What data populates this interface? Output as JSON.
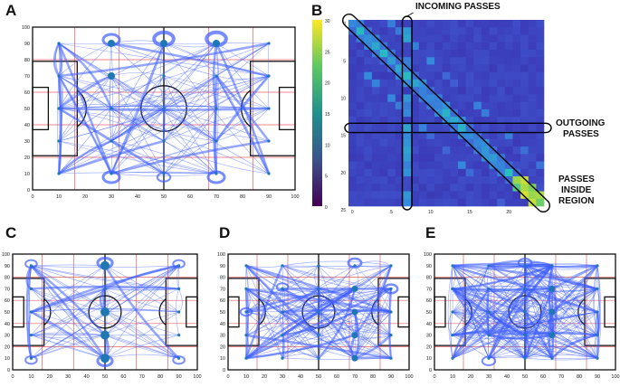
{
  "panels": {
    "A": {
      "label": "A",
      "x_ticks": [
        "0",
        "10",
        "20",
        "30",
        "40",
        "50",
        "60",
        "70",
        "80",
        "90",
        "100"
      ],
      "y_ticks": [
        "0",
        "10",
        "20",
        "30",
        "40",
        "50",
        "60",
        "70",
        "80",
        "90",
        "100"
      ]
    },
    "B": {
      "label": "B",
      "colorbar_ticks": [
        "30",
        "25",
        "20",
        "15",
        "10",
        "5",
        "0"
      ],
      "y_ticks": [
        "0",
        "5",
        "10",
        "15",
        "20",
        "25"
      ],
      "x_ticks": [
        "0",
        "5",
        "10",
        "15",
        "20"
      ],
      "annotations": {
        "incoming": "INCOMING PASSES",
        "outgoing_1": "OUTGOING",
        "outgoing_2": "PASSES",
        "inside_1": "PASSES",
        "inside_2": "INSIDE",
        "inside_3": "REGION"
      }
    },
    "C": {
      "label": "C",
      "x_ticks": [
        "0",
        "10",
        "20",
        "30",
        "40",
        "50",
        "60",
        "70",
        "80",
        "90",
        "100"
      ],
      "y_ticks": [
        "0",
        "10",
        "20",
        "30",
        "40",
        "50",
        "60",
        "70",
        "80",
        "90",
        "100"
      ]
    },
    "D": {
      "label": "D",
      "x_ticks": [
        "0",
        "10",
        "20",
        "30",
        "40",
        "50",
        "60",
        "70",
        "80",
        "90",
        "100"
      ],
      "y_ticks": [
        "0",
        "10",
        "20",
        "30",
        "40",
        "50",
        "60",
        "70",
        "80",
        "90",
        "100"
      ]
    },
    "E": {
      "label": "E",
      "x_ticks": [
        "0",
        "10",
        "20",
        "30",
        "40",
        "50",
        "60",
        "70",
        "80",
        "90",
        "100"
      ],
      "y_ticks": [
        "0",
        "10",
        "20",
        "30",
        "40",
        "50",
        "60",
        "70",
        "80",
        "90",
        "100"
      ]
    }
  },
  "colors": {
    "edge": "#3d5cff",
    "node": "#1f78b4",
    "grid": "#e23a3a",
    "pitch": "#111111",
    "heatmap_bg": "#3b3bb8",
    "viridis_low": "#440154",
    "viridis_high": "#fde725"
  }
}
